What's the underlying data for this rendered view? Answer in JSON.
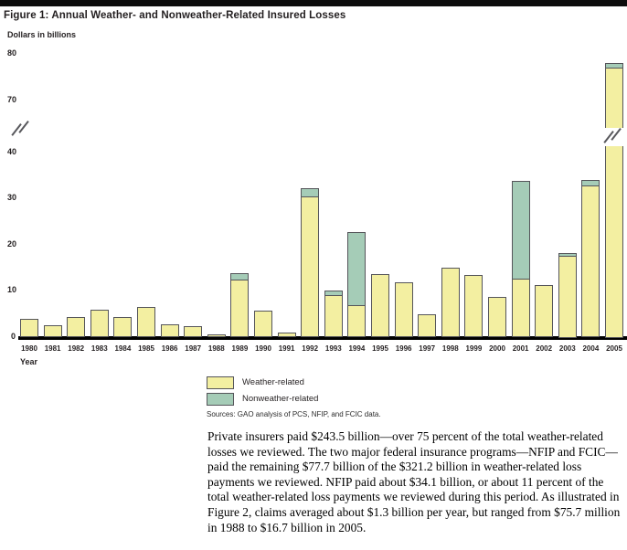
{
  "header": {
    "title": "Figure 1: Annual Weather- and Nonweather-Related Insured Losses"
  },
  "chart_data": {
    "type": "bar",
    "stacked": true,
    "title": "Figure 1: Annual Weather- and Nonweather-Related Insured Losses",
    "y_caption": "Dollars in billions",
    "xlabel": "Year",
    "ylabel": "Dollars in billions",
    "categories": [
      "1980",
      "1981",
      "1982",
      "1983",
      "1984",
      "1985",
      "1986",
      "1987",
      "1988",
      "1989",
      "1990",
      "1991",
      "1992",
      "1993",
      "1994",
      "1995",
      "1996",
      "1997",
      "1998",
      "1999",
      "2000",
      "2001",
      "2002",
      "2003",
      "2004",
      "2005"
    ],
    "series": [
      {
        "name": "Weather-related",
        "color": "#f3efa1",
        "values": [
          3.7,
          2.3,
          4.1,
          5.8,
          4.2,
          6.3,
          2.6,
          2.2,
          0.4,
          12.3,
          5.5,
          0.8,
          30.3,
          9.0,
          6.9,
          13.5,
          11.6,
          4.8,
          14.8,
          13.2,
          8.5,
          12.6,
          11.1,
          17.5,
          32.8,
          77.0
        ]
      },
      {
        "name": "Nonweather-related",
        "color": "#a5ccb7",
        "values": [
          0,
          0,
          0,
          0,
          0,
          0,
          0,
          0,
          0,
          1.3,
          0,
          0,
          1.7,
          1.0,
          15.6,
          0,
          0,
          0,
          0,
          0,
          0,
          21.0,
          0,
          0.6,
          1.0,
          1.0
        ]
      }
    ],
    "yticks": [
      0,
      10,
      20,
      30,
      40,
      70,
      80
    ],
    "ylim": [
      0,
      82
    ],
    "axis_break": {
      "lower_max": 42,
      "upper_min": 67
    },
    "grid": false,
    "legend_position": "below"
  },
  "legend": {
    "items": [
      {
        "label": "Weather-related",
        "color": "#f3efa1"
      },
      {
        "label": "Nonweather-related",
        "color": "#a5ccb7"
      }
    ]
  },
  "sources": "Sources: GAO analysis of PCS, NFIP,  and FCIC data.",
  "paragraph": "Private insurers paid $243.5 billion—over 75 percent of the total weather-related losses we reviewed. The two major federal insurance programs—NFIP and FCIC—paid the remaining $77.7 billion of the $321.2 billion in weather-related loss payments we reviewed. NFIP paid about $34.1 billion, or about 11 percent of the total weather-related loss payments we reviewed during this period. As illustrated in Figure 2, claims averaged about $1.3 billion per year, but ranged from $75.7 million in 1988 to $16.7 billion in 2005."
}
